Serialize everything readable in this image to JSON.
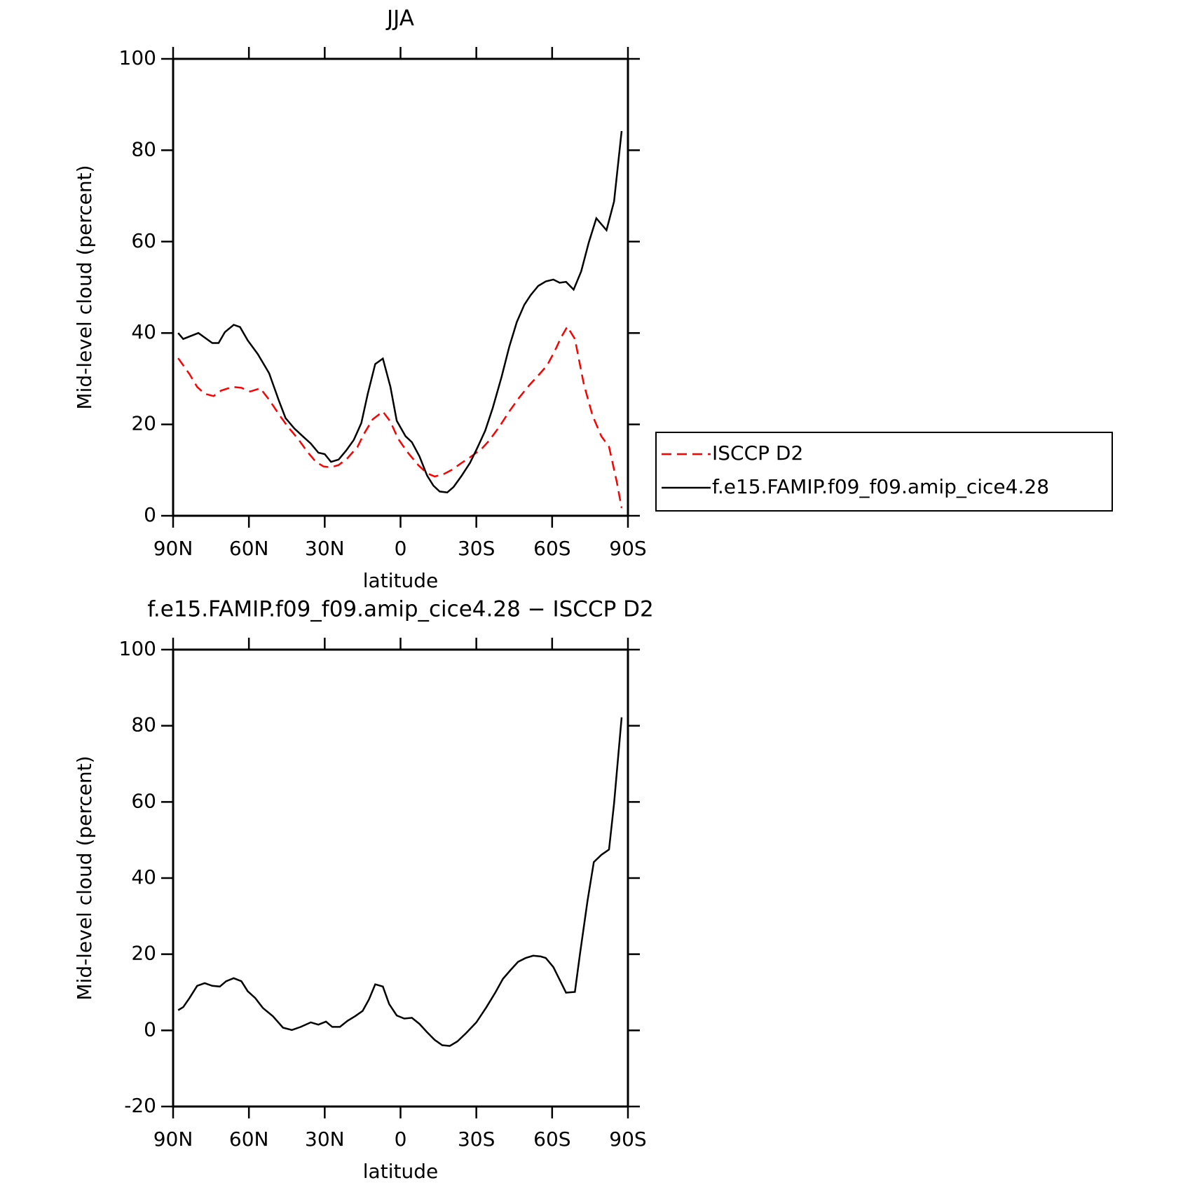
{
  "chart_data": [
    {
      "type": "line",
      "title": "JJA",
      "xlabel": "latitude",
      "ylabel": "Mid-level cloud (percent)",
      "xlim": [
        90,
        -90
      ],
      "xticks": [
        {
          "value": 90,
          "label": "90N"
        },
        {
          "value": 60,
          "label": "60N"
        },
        {
          "value": 30,
          "label": "30N"
        },
        0,
        {
          "value": -30,
          "label": "30S"
        },
        {
          "value": -60,
          "label": "60S"
        },
        {
          "value": -90,
          "label": "90S"
        }
      ],
      "ylim": [
        0,
        100
      ],
      "yticks": [
        0,
        20,
        40,
        60,
        80,
        100
      ],
      "legend": "right",
      "series": [
        {
          "name": "ISCCP D2",
          "color": "#ff0000",
          "dashed": true,
          "x": [
            88,
            83.5,
            80.5,
            77.5,
            74,
            71,
            66.5,
            63,
            59.5,
            55.5,
            52,
            48,
            44.5,
            40.5,
            37,
            33.5,
            30.5,
            27.5,
            24.5,
            21,
            17,
            14.5,
            11,
            7,
            4,
            1,
            -2.5,
            -7,
            -10.5,
            -13.5,
            -17,
            -20.5,
            -24,
            -27.5,
            -32,
            -35,
            -39,
            -43,
            -47,
            -51,
            -54.5,
            -58,
            -61,
            -63.5,
            -66,
            -69,
            -72.5,
            -76,
            -79.5,
            -82.5,
            -85.5,
            -87.5
          ],
          "values": [
            34.5,
            31,
            28.2,
            26.7,
            26.2,
            27.4,
            28.2,
            28,
            27.2,
            27.9,
            25.4,
            22.1,
            19.4,
            16.8,
            14.1,
            11.8,
            10.8,
            10.6,
            11.1,
            12.6,
            15.1,
            17.9,
            21.1,
            22.8,
            20.6,
            16.9,
            14.1,
            11.1,
            9.3,
            8.6,
            9.1,
            10.1,
            11.5,
            12.8,
            14.6,
            16.4,
            19.4,
            22.8,
            25.9,
            28.6,
            30.7,
            32.9,
            36,
            39,
            41.4,
            38.7,
            28.9,
            21.9,
            17.4,
            15.1,
            7.6,
            1.7
          ]
        },
        {
          "name": "f.e15.FAMIP.f09_f09.amip_cice4.28",
          "color": "#000000",
          "dashed": false,
          "x": [
            88,
            86,
            80,
            74.5,
            72,
            69.5,
            66,
            63.5,
            60.5,
            56.5,
            52,
            48,
            45.5,
            42,
            38.5,
            35.5,
            32.5,
            30,
            27.5,
            24.5,
            21.5,
            18.5,
            15.5,
            13,
            10,
            7,
            4,
            1.5,
            -2,
            -4.5,
            -7.5,
            -10.5,
            -13,
            -15.5,
            -18.5,
            -21,
            -24,
            -27.5,
            -30.5,
            -33.5,
            -36.5,
            -40,
            -43,
            -46,
            -49,
            -51.5,
            -54.5,
            -57.5,
            -60.5,
            -63,
            -65.5,
            -68.5,
            -71.5,
            -74.5,
            -77.5,
            -81.5,
            -84.5,
            -87.5
          ],
          "values": [
            40,
            38.7,
            40,
            37.8,
            37.8,
            40.2,
            41.8,
            41.3,
            38.4,
            35.4,
            31.2,
            25,
            21.4,
            19.1,
            17.3,
            15.8,
            13.8,
            13.5,
            11.8,
            12.3,
            14.3,
            16.6,
            20.3,
            26.6,
            33.2,
            34.4,
            28.2,
            20.8,
            17.4,
            16.1,
            13,
            8.8,
            6.6,
            5.3,
            5.1,
            6.3,
            8.6,
            11.6,
            15,
            18.6,
            23.6,
            30.4,
            36.9,
            42.4,
            46.2,
            48.3,
            50.3,
            51.3,
            51.7,
            51,
            51.2,
            49.5,
            53.5,
            59.8,
            65.1,
            62.5,
            68.8,
            84.2
          ]
        }
      ]
    },
    {
      "type": "line",
      "title": "f.e15.FAMIP.f09_f09.amip_cice4.28 − ISCCP D2",
      "xlabel": "latitude",
      "ylabel": "Mid-level cloud (percent)",
      "xlim": [
        90,
        -90
      ],
      "xticks": [
        {
          "value": 90,
          "label": "90N"
        },
        {
          "value": 60,
          "label": "60N"
        },
        {
          "value": 30,
          "label": "30N"
        },
        0,
        {
          "value": -30,
          "label": "30S"
        },
        {
          "value": -60,
          "label": "60S"
        },
        {
          "value": -90,
          "label": "90S"
        }
      ],
      "ylim": [
        -20,
        100
      ],
      "yticks": [
        -20,
        0,
        20,
        40,
        60,
        80,
        100
      ],
      "series": [
        {
          "color": "#000000",
          "dashed": false,
          "x": [
            88,
            86,
            83.5,
            80.5,
            77.5,
            74.5,
            71.5,
            69,
            66,
            63,
            60.5,
            57.5,
            54.5,
            50.5,
            46.5,
            43,
            39.5,
            35.5,
            32.5,
            29.5,
            27,
            24,
            21,
            18,
            15,
            12.5,
            10,
            7,
            4.5,
            1.5,
            -1.5,
            -4.5,
            -7.5,
            -10.5,
            -13.5,
            -16.5,
            -19.5,
            -22.5,
            -26,
            -30,
            -34,
            -37.5,
            -40.5,
            -43.5,
            -46.5,
            -49.5,
            -52.5,
            -55.5,
            -57.5,
            -60.5,
            -65.5,
            -69,
            -71,
            -74,
            -76.5,
            -79.5,
            -82.5,
            -84.5,
            -87.5
          ],
          "values": [
            5.3,
            6.1,
            8.5,
            11.7,
            12.4,
            11.7,
            11.5,
            12.9,
            13.7,
            12.9,
            10.3,
            8.5,
            5.9,
            3.7,
            0.7,
            0.1,
            0.9,
            2.1,
            1.5,
            2.3,
            0.9,
            0.9,
            2.5,
            3.7,
            5.1,
            8.1,
            12.1,
            11.5,
            6.9,
            3.9,
            3.1,
            3.3,
            1.7,
            -0.5,
            -2.5,
            -3.9,
            -4.1,
            -2.9,
            -0.7,
            2.1,
            6.1,
            9.9,
            13.5,
            15.8,
            18,
            19,
            19.6,
            19.4,
            19,
            16.6,
            9.9,
            10.1,
            20,
            34,
            44.2,
            46.1,
            47.5,
            59.6,
            82.2
          ]
        }
      ]
    }
  ]
}
